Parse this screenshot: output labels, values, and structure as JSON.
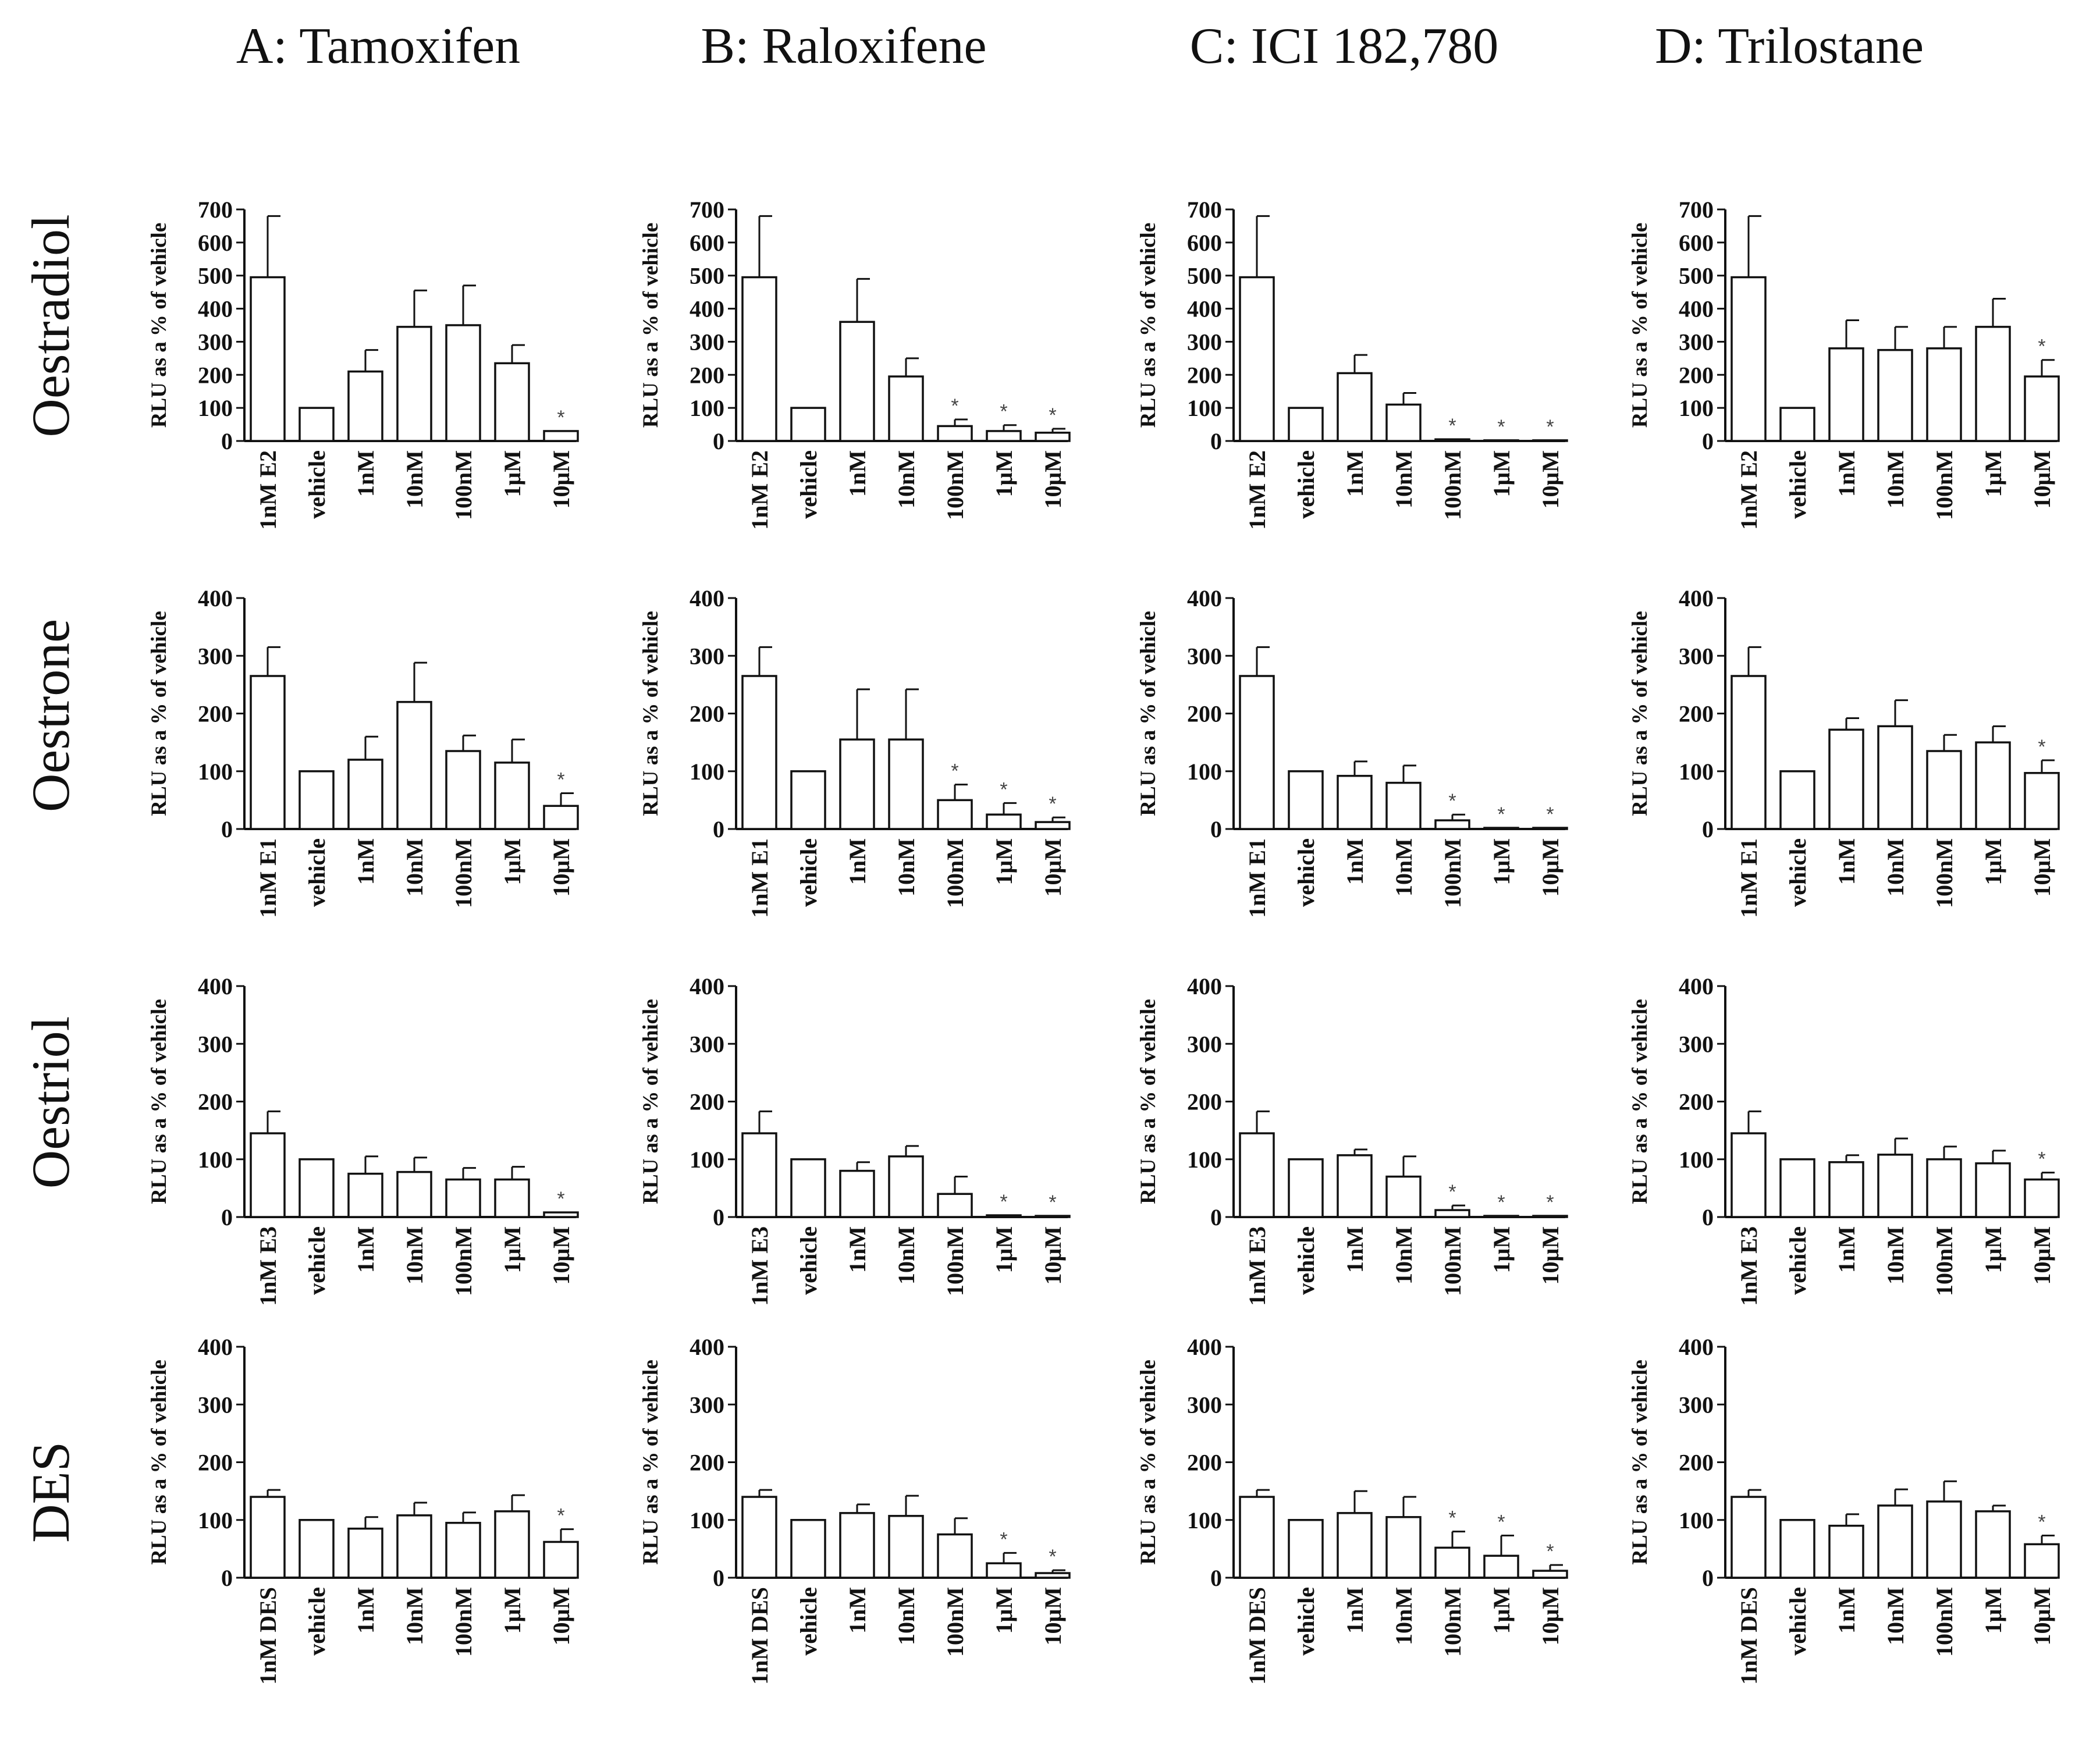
{
  "figure": {
    "column_titles": [
      "A: Tamoxifen",
      "B: Raloxifene",
      "C: ICI 182,780",
      "D: Trilostane"
    ],
    "row_titles": [
      "Oestradiol",
      "Oestrone",
      "Oestriol",
      "DES"
    ]
  },
  "chart_data": [
    {
      "type": "bar",
      "row": 0,
      "col": 0,
      "ylabel": "RLU as a % of vehicle",
      "ylim": [
        0,
        700
      ],
      "yticks": [
        0,
        100,
        200,
        300,
        400,
        500,
        600,
        700
      ],
      "categories": [
        "1nM E2",
        "vehicle",
        "1nM",
        "10nM",
        "100nM",
        "1μM",
        "10μM"
      ],
      "values": [
        495,
        100,
        210,
        345,
        350,
        235,
        30
      ],
      "errors": [
        185,
        0,
        65,
        110,
        120,
        55,
        0
      ],
      "significant": [
        false,
        false,
        false,
        false,
        false,
        false,
        true
      ]
    },
    {
      "type": "bar",
      "row": 0,
      "col": 1,
      "ylabel": "RLU as a % of vehicle",
      "ylim": [
        0,
        700
      ],
      "yticks": [
        0,
        100,
        200,
        300,
        400,
        500,
        600,
        700
      ],
      "categories": [
        "1nM E2",
        "vehicle",
        "1nM",
        "10nM",
        "100nM",
        "1μM",
        "10μM"
      ],
      "values": [
        495,
        100,
        360,
        195,
        45,
        30,
        25
      ],
      "errors": [
        185,
        0,
        130,
        55,
        20,
        18,
        12
      ],
      "significant": [
        false,
        false,
        false,
        false,
        true,
        true,
        true
      ]
    },
    {
      "type": "bar",
      "row": 0,
      "col": 2,
      "ylabel": "RLU as a % of vehicle",
      "ylim": [
        0,
        700
      ],
      "yticks": [
        0,
        100,
        200,
        300,
        400,
        500,
        600,
        700
      ],
      "categories": [
        "1nM E2",
        "vehicle",
        "1nM",
        "10nM",
        "100nM",
        "1μM",
        "10μM"
      ],
      "values": [
        495,
        100,
        205,
        110,
        5,
        2,
        2
      ],
      "errors": [
        185,
        0,
        55,
        35,
        0,
        0,
        0
      ],
      "significant": [
        false,
        false,
        false,
        false,
        true,
        true,
        true
      ]
    },
    {
      "type": "bar",
      "row": 0,
      "col": 3,
      "ylabel": "RLU as a % of vehicle",
      "ylim": [
        0,
        700
      ],
      "yticks": [
        0,
        100,
        200,
        300,
        400,
        500,
        600,
        700
      ],
      "categories": [
        "1nM E2",
        "vehicle",
        "1nM",
        "10nM",
        "100nM",
        "1μM",
        "10μM"
      ],
      "values": [
        495,
        100,
        280,
        275,
        280,
        345,
        195
      ],
      "errors": [
        185,
        0,
        85,
        70,
        65,
        85,
        50
      ],
      "significant": [
        false,
        false,
        false,
        false,
        false,
        false,
        true
      ]
    },
    {
      "type": "bar",
      "row": 1,
      "col": 0,
      "ylabel": "RLU as a % of vehicle",
      "ylim": [
        0,
        400
      ],
      "yticks": [
        0,
        100,
        200,
        300,
        400
      ],
      "categories": [
        "1nM E1",
        "vehicle",
        "1nM",
        "10nM",
        "100nM",
        "1μM",
        "10μM"
      ],
      "values": [
        265,
        100,
        120,
        220,
        135,
        115,
        40
      ],
      "errors": [
        50,
        0,
        40,
        68,
        27,
        40,
        22
      ],
      "significant": [
        false,
        false,
        false,
        false,
        false,
        false,
        true
      ]
    },
    {
      "type": "bar",
      "row": 1,
      "col": 1,
      "ylabel": "RLU as a % of vehicle",
      "ylim": [
        0,
        400
      ],
      "yticks": [
        0,
        100,
        200,
        300,
        400
      ],
      "categories": [
        "1nM E1",
        "vehicle",
        "1nM",
        "10nM",
        "100nM",
        "1μM",
        "10μM"
      ],
      "values": [
        265,
        100,
        155,
        155,
        50,
        25,
        12
      ],
      "errors": [
        50,
        0,
        87,
        87,
        27,
        20,
        8
      ],
      "significant": [
        false,
        false,
        false,
        false,
        true,
        true,
        true
      ]
    },
    {
      "type": "bar",
      "row": 1,
      "col": 2,
      "ylabel": "RLU as a % of vehicle",
      "ylim": [
        0,
        400
      ],
      "yticks": [
        0,
        100,
        200,
        300,
        400
      ],
      "categories": [
        "1nM E1",
        "vehicle",
        "1nM",
        "10nM",
        "100nM",
        "1μM",
        "10μM"
      ],
      "values": [
        265,
        100,
        92,
        80,
        15,
        2,
        2
      ],
      "errors": [
        50,
        0,
        25,
        30,
        10,
        0,
        0
      ],
      "significant": [
        false,
        false,
        false,
        false,
        true,
        true,
        true
      ]
    },
    {
      "type": "bar",
      "row": 1,
      "col": 3,
      "ylabel": "RLU as a % of vehicle",
      "ylim": [
        0,
        400
      ],
      "yticks": [
        0,
        100,
        200,
        300,
        400
      ],
      "categories": [
        "1nM E1",
        "vehicle",
        "1nM",
        "10nM",
        "100nM",
        "1μM",
        "10μM"
      ],
      "values": [
        265,
        100,
        172,
        178,
        135,
        150,
        97
      ],
      "errors": [
        50,
        0,
        20,
        45,
        28,
        28,
        22
      ],
      "significant": [
        false,
        false,
        false,
        false,
        false,
        false,
        true
      ]
    },
    {
      "type": "bar",
      "row": 2,
      "col": 0,
      "ylabel": "RLU as a % of vehicle",
      "ylim": [
        0,
        400
      ],
      "yticks": [
        0,
        100,
        200,
        300,
        400
      ],
      "categories": [
        "1nM E3",
        "vehicle",
        "1nM",
        "10nM",
        "100nM",
        "1μM",
        "10μM"
      ],
      "values": [
        145,
        100,
        75,
        78,
        65,
        65,
        8
      ],
      "errors": [
        38,
        0,
        30,
        25,
        20,
        22,
        0
      ],
      "significant": [
        false,
        false,
        false,
        false,
        false,
        false,
        true
      ]
    },
    {
      "type": "bar",
      "row": 2,
      "col": 1,
      "ylabel": "RLU as a % of vehicle",
      "ylim": [
        0,
        400
      ],
      "yticks": [
        0,
        100,
        200,
        300,
        400
      ],
      "categories": [
        "1nM E3",
        "vehicle",
        "1nM",
        "10nM",
        "100nM",
        "1μM",
        "10μM"
      ],
      "values": [
        145,
        100,
        80,
        105,
        40,
        3,
        2
      ],
      "errors": [
        38,
        0,
        15,
        18,
        30,
        0,
        0
      ],
      "significant": [
        false,
        false,
        false,
        false,
        false,
        true,
        true
      ]
    },
    {
      "type": "bar",
      "row": 2,
      "col": 2,
      "ylabel": "RLU as a % of vehicle",
      "ylim": [
        0,
        400
      ],
      "yticks": [
        0,
        100,
        200,
        300,
        400
      ],
      "categories": [
        "1nM E3",
        "vehicle",
        "1nM",
        "10nM",
        "100nM",
        "1μM",
        "10μM"
      ],
      "values": [
        145,
        100,
        107,
        70,
        12,
        2,
        2
      ],
      "errors": [
        38,
        0,
        10,
        35,
        8,
        0,
        0
      ],
      "significant": [
        false,
        false,
        false,
        false,
        true,
        true,
        true
      ]
    },
    {
      "type": "bar",
      "row": 2,
      "col": 3,
      "ylabel": "RLU as a % of vehicle",
      "ylim": [
        0,
        400
      ],
      "yticks": [
        0,
        100,
        200,
        300,
        400
      ],
      "categories": [
        "1nM E3",
        "vehicle",
        "1nM",
        "10nM",
        "100nM",
        "1μM",
        "10μM"
      ],
      "values": [
        145,
        100,
        95,
        108,
        100,
        93,
        65
      ],
      "errors": [
        38,
        0,
        12,
        28,
        22,
        22,
        12
      ],
      "significant": [
        false,
        false,
        false,
        false,
        false,
        false,
        true
      ]
    },
    {
      "type": "bar",
      "row": 3,
      "col": 0,
      "ylabel": "RLU as a % of vehicle",
      "ylim": [
        0,
        400
      ],
      "yticks": [
        0,
        100,
        200,
        300,
        400
      ],
      "categories": [
        "1nM DES",
        "vehicle",
        "1nM",
        "10nM",
        "100nM",
        "1μM",
        "10μM"
      ],
      "values": [
        140,
        100,
        85,
        108,
        95,
        115,
        62
      ],
      "errors": [
        12,
        0,
        20,
        22,
        18,
        28,
        22
      ],
      "significant": [
        false,
        false,
        false,
        false,
        false,
        false,
        true
      ]
    },
    {
      "type": "bar",
      "row": 3,
      "col": 1,
      "ylabel": "RLU as a % of vehicle",
      "ylim": [
        0,
        400
      ],
      "yticks": [
        0,
        100,
        200,
        300,
        400
      ],
      "categories": [
        "1nM DES",
        "vehicle",
        "1nM",
        "10nM",
        "100nM",
        "1μM",
        "10μM"
      ],
      "values": [
        140,
        100,
        112,
        107,
        75,
        25,
        8
      ],
      "errors": [
        12,
        0,
        15,
        35,
        28,
        18,
        5
      ],
      "significant": [
        false,
        false,
        false,
        false,
        false,
        true,
        true
      ]
    },
    {
      "type": "bar",
      "row": 3,
      "col": 2,
      "ylabel": "RLU as a % of vehicle",
      "ylim": [
        0,
        400
      ],
      "yticks": [
        0,
        100,
        200,
        300,
        400
      ],
      "categories": [
        "1nM DES",
        "vehicle",
        "1nM",
        "10nM",
        "100nM",
        "1μM",
        "10μM"
      ],
      "values": [
        140,
        100,
        112,
        105,
        52,
        38,
        12
      ],
      "errors": [
        12,
        0,
        38,
        35,
        28,
        35,
        10
      ],
      "significant": [
        false,
        false,
        false,
        false,
        true,
        true,
        true
      ]
    },
    {
      "type": "bar",
      "row": 3,
      "col": 3,
      "ylabel": "RLU as a % of vehicle",
      "ylim": [
        0,
        400
      ],
      "yticks": [
        0,
        100,
        200,
        300,
        400
      ],
      "categories": [
        "1nM DES",
        "vehicle",
        "1nM",
        "10nM",
        "100nM",
        "1μM",
        "10μM"
      ],
      "values": [
        140,
        100,
        90,
        125,
        132,
        115,
        58
      ],
      "errors": [
        12,
        0,
        20,
        28,
        35,
        10,
        15
      ],
      "significant": [
        false,
        false,
        false,
        false,
        false,
        false,
        true
      ]
    }
  ]
}
